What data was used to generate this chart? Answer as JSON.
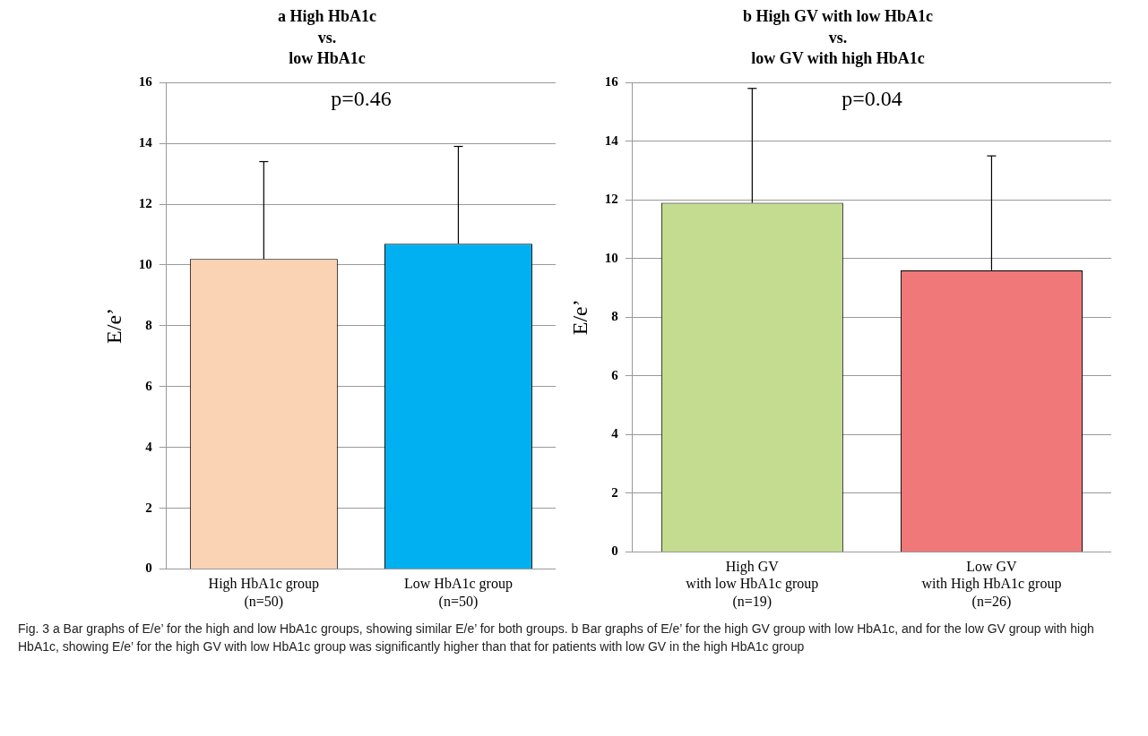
{
  "chart_data": [
    {
      "type": "bar",
      "title": "a High HbA1c\nvs.\nlow HbA1c",
      "ylabel": "E/e’",
      "categories": [
        "High HbA1c group\n(n=50)",
        "Low HbA1c group\n(n=50)"
      ],
      "values": [
        10.2,
        10.7
      ],
      "colors": [
        "#f9d3b4",
        "#00b0f0"
      ],
      "errors": [
        [
          10.2,
          13.4
        ],
        [
          10.7,
          13.9
        ]
      ],
      "ylim": [
        0,
        16
      ],
      "yticks": [
        0,
        2,
        4,
        6,
        8,
        10,
        12,
        14,
        16
      ],
      "grid": "y",
      "legend": false,
      "annotations": [
        "p=0.46"
      ]
    },
    {
      "type": "bar",
      "title": "b High GV with low HbA1c\nvs.\nlow GV with high HbA1c",
      "ylabel": "E/e’",
      "categories": [
        "High GV\nwith low HbA1c group\n(n=19)",
        "Low GV\nwith High HbA1c group\n(n=26)"
      ],
      "values": [
        11.9,
        9.6
      ],
      "colors": [
        "#c4dc90",
        "#f07878"
      ],
      "errors": [
        [
          11.9,
          15.8
        ],
        [
          9.6,
          13.5
        ]
      ],
      "ylim": [
        0,
        16
      ],
      "yticks": [
        0,
        2,
        4,
        6,
        8,
        10,
        12,
        14,
        16
      ],
      "grid": "y",
      "legend": false,
      "annotations": [
        "p=0.04",
        "Fig. 3 a Bar graphs of E/e’ for the high and low HbA1c groups, showing similar E/e’ for both groups. b Bar graphs of E/e’ for the high GV group with low HbA1c, and for the low GV group with high HbA1c, showing E/e’ for the high GV with low HbA1c group was significantly higher than that for patients with low GV in the high HbA1c group"
      ]
    }
  ]
}
